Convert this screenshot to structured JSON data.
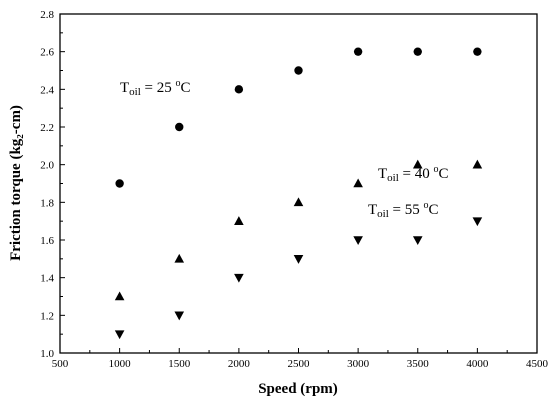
{
  "chart_data": {
    "type": "scatter",
    "xlabel": "Speed (rpm)",
    "ylabel": "Friction torque (kg₂-cm)",
    "xlim": [
      500,
      4500
    ],
    "ylim": [
      1.0,
      2.8
    ],
    "x_ticks": [
      "500",
      "1000",
      "1500",
      "2000",
      "2500",
      "3000",
      "3500",
      "4000",
      "4500"
    ],
    "y_ticks": [
      "1.0",
      "1.2",
      "1.4",
      "1.6",
      "1.8",
      "2.0",
      "2.2",
      "2.4",
      "2.6",
      "2.8"
    ],
    "grid": false,
    "x": [
      1000,
      1500,
      2000,
      2500,
      3000,
      3500,
      4000
    ],
    "series": [
      {
        "marker": "circle",
        "values": [
          1.9,
          2.2,
          2.4,
          2.5,
          2.6,
          2.6,
          2.6
        ]
      },
      {
        "marker": "triangle-up",
        "values": [
          1.3,
          1.5,
          1.7,
          1.8,
          1.9,
          2.0,
          2.0
        ]
      },
      {
        "marker": "triangle-down",
        "values": [
          1.1,
          1.2,
          1.4,
          1.5,
          1.6,
          1.6,
          1.7
        ]
      }
    ],
    "annotations": [
      {
        "main": "T",
        "sub": "oil",
        "rest": " = 25 ",
        "deg": "o",
        "unit": "C"
      },
      {
        "main": "T",
        "sub": "oil",
        "rest": " = 40 ",
        "deg": "o",
        "unit": "C"
      },
      {
        "main": "T",
        "sub": "oil",
        "rest": " = 55 ",
        "deg": "o",
        "unit": "C"
      }
    ]
  }
}
